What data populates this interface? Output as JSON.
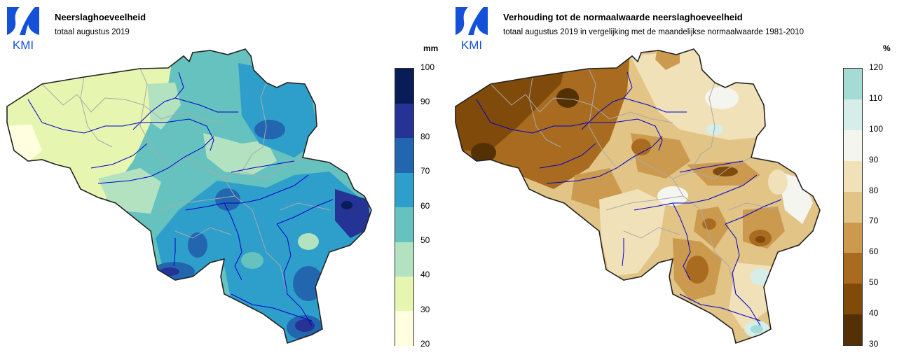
{
  "colors": {
    "precip_ramp": [
      "#ffffe0",
      "#e6f6b0",
      "#b3e2c0",
      "#66c2be",
      "#2e9fcb",
      "#2266b0",
      "#253494",
      "#081d58"
    ],
    "ratio_ramp": [
      "#543005",
      "#7f4a0a",
      "#a86b1f",
      "#cc9a4e",
      "#e1c486",
      "#f1e1b8",
      "#f5f5ef",
      "#d5eee9",
      "#a4dcd5"
    ],
    "border": "#222222",
    "province_border": "#aaaaaa",
    "river": "#0000cc",
    "logo_blue": "#1450d8"
  },
  "logo": {
    "text": "KMI"
  },
  "left_map": {
    "title": "Neerslaghoeveelheid",
    "subtitle": "totaal augustus 2019",
    "legend": {
      "unit": "mm",
      "ticks": [
        "100",
        "90",
        "80",
        "70",
        "60",
        "50",
        "40",
        "30",
        "20"
      ]
    }
  },
  "right_map": {
    "title": "Verhouding tot de normaalwaarde neerslaghoeveelheid",
    "subtitle": "totaal augustus 2019 in vergelijking met de maandelijkse normaalwaarde 1981-2010",
    "legend": {
      "unit": "%",
      "ticks": [
        "120",
        "110",
        "100",
        "90",
        "80",
        "70",
        "60",
        "50",
        "40",
        "30"
      ]
    }
  }
}
